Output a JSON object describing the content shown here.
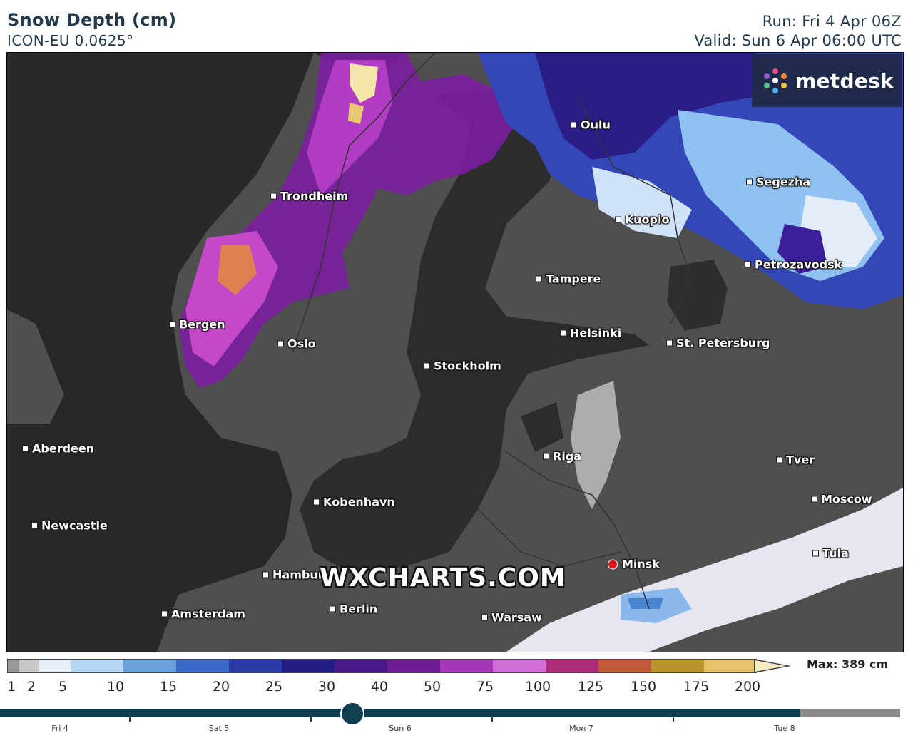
{
  "header": {
    "title": "Snow Depth (cm)",
    "model": "ICON-EU 0.0625°",
    "run": "Run: Fri 4 Apr 06Z",
    "valid": "Valid: Sun 6 Apr 06:00 UTC"
  },
  "brand": {
    "logo_text": "metdesk",
    "watermark": "WXCHARTS.COM"
  },
  "cities": [
    {
      "name": "Oulu"
    },
    {
      "name": "Trondheim"
    },
    {
      "name": "Segezha"
    },
    {
      "name": "Kuopio"
    },
    {
      "name": "Petrozavodsk"
    },
    {
      "name": "Tampere"
    },
    {
      "name": "Bergen"
    },
    {
      "name": "Helsinki"
    },
    {
      "name": "Oslo"
    },
    {
      "name": "St. Petersburg"
    },
    {
      "name": "Stockholm"
    },
    {
      "name": "Aberdeen"
    },
    {
      "name": "Riga"
    },
    {
      "name": "Tver"
    },
    {
      "name": "Kobenhavn"
    },
    {
      "name": "Moscow"
    },
    {
      "name": "Newcastle"
    },
    {
      "name": "Tula"
    },
    {
      "name": "Minsk",
      "selected": true
    },
    {
      "name": "Hamburg"
    },
    {
      "name": "Berlin"
    },
    {
      "name": "Amsterdam"
    },
    {
      "name": "Warsaw"
    }
  ],
  "legend": {
    "unit": "cm",
    "max_label": "Max: 389 cm",
    "ticks": [
      "1",
      "2",
      "5",
      "10",
      "15",
      "20",
      "25",
      "30",
      "40",
      "50",
      "75",
      "100",
      "125",
      "150",
      "175",
      "200"
    ],
    "colors": [
      "#9a9a9a",
      "#c8c8c8",
      "#e8eef8",
      "#b6d6f6",
      "#6aa2dc",
      "#3d69c6",
      "#2a3aa8",
      "#231c82",
      "#4a1a88",
      "#6e1c94",
      "#a436b8",
      "#d070d8",
      "#b02c78",
      "#c25a3a",
      "#b8962a",
      "#e4c46a",
      "#f6e6b2"
    ]
  },
  "timeline": {
    "days": [
      "Fri 4",
      "Sat 5",
      "Sun 6",
      "Mon 7",
      "Tue 8"
    ],
    "current": "Sun 6 06:00"
  }
}
